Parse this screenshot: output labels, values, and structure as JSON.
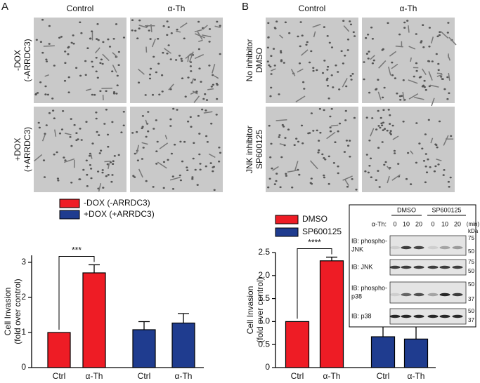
{
  "figure": {
    "panels": [
      {
        "label": "A",
        "columns": [
          "Control",
          "α-Th"
        ],
        "rows": [
          [
            "-DOX",
            "(-ARRDC3)"
          ],
          [
            "+DOX",
            "(+ARRDC3)"
          ]
        ]
      },
      {
        "label": "B",
        "columns": [
          "Control",
          "α-Th"
        ],
        "rows": [
          [
            "No inhibitor",
            "DMSO"
          ],
          [
            "JNK inhibitor",
            "SP600125"
          ]
        ]
      }
    ]
  },
  "chart_data": [
    {
      "type": "bar",
      "y_label": [
        "Cell Invasion",
        "(fold over control)"
      ],
      "categories": [
        "Ctrl",
        "α-Th",
        "Ctrl",
        "α-Th"
      ],
      "series": [
        {
          "name": "-DOX (-ARRDC3)",
          "color": "#ee1c25",
          "values": [
            1,
            2.7,
            null,
            null
          ],
          "errors": [
            null,
            0.23,
            null,
            null
          ]
        },
        {
          "name": "+DOX (+ARRDC3)",
          "color": "#1f3c8f",
          "values": [
            null,
            null,
            1.08,
            1.27
          ],
          "errors": [
            null,
            null,
            0.23,
            0.27
          ]
        }
      ],
      "ylim": [
        0,
        3.2
      ],
      "yticks": [
        0,
        1,
        2,
        3
      ],
      "significance": "***"
    },
    {
      "type": "bar",
      "y_label": [
        "Cell Invasion",
        "(fold over control)"
      ],
      "categories": [
        "Ctrl",
        "α-Th",
        "Ctrl",
        "α-Th"
      ],
      "series": [
        {
          "name": "DMSO",
          "color": "#ee1c25",
          "values": [
            1,
            2.32,
            null,
            null
          ],
          "errors": [
            null,
            0.08,
            null,
            null
          ]
        },
        {
          "name": "SP600125",
          "color": "#1f3c8f",
          "values": [
            null,
            null,
            0.67,
            0.62
          ],
          "errors": [
            null,
            null,
            0.36,
            0.36
          ]
        }
      ],
      "ylim": [
        0,
        2.5
      ],
      "yticks": [
        0,
        0.5,
        {
          "value": 1,
          "label": "1.0"
        },
        1.5,
        {
          "value": 2,
          "label": "2.0"
        },
        2.5
      ],
      "significance": "****"
    }
  ],
  "blot": {
    "groups": [
      "DMSO",
      "SP600125"
    ],
    "time_label": "α-Th:",
    "times": [
      0,
      10,
      20,
      0,
      10,
      20
    ],
    "unit": "(min)",
    "marker_unit": "kDa",
    "rows": [
      {
        "label": [
          "IB: phospho-",
          "JNK"
        ],
        "markers": [
          75,
          50
        ]
      },
      {
        "label": [
          "IB: JNK"
        ],
        "markers": [
          75,
          50
        ]
      },
      {
        "label": [
          "IB: phospho-",
          "p38"
        ],
        "markers": [
          50,
          37
        ]
      },
      {
        "label": [
          "IB: p38"
        ],
        "markers": [
          50,
          37
        ]
      }
    ]
  }
}
